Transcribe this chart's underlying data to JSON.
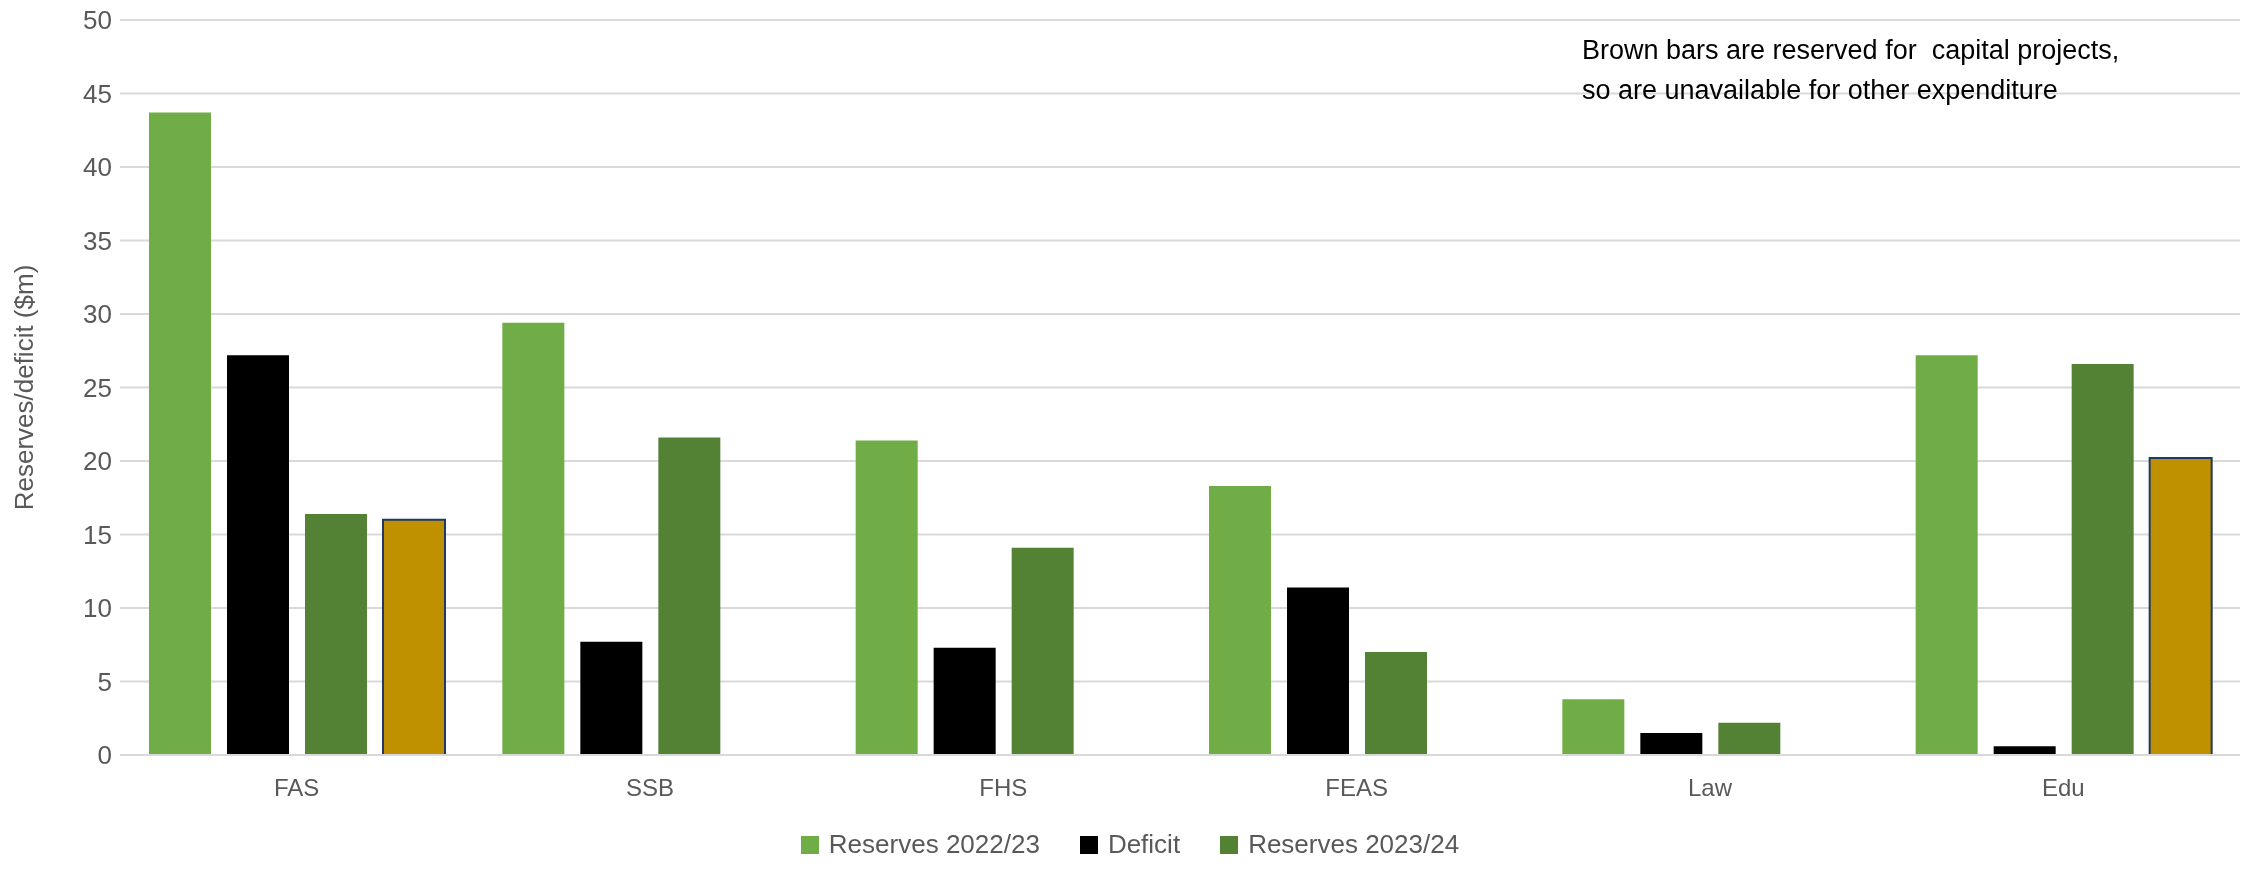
{
  "chart_data": {
    "type": "bar",
    "ylabel": "Reserves/deficit ($m)",
    "categories": [
      "FAS",
      "SSB",
      "FHS",
      "FEAS",
      "Law",
      "Edu"
    ],
    "series": [
      {
        "name": "Reserves 2022/23",
        "color": "#70ad47",
        "values": [
          43.7,
          29.4,
          21.4,
          18.3,
          3.8,
          27.2
        ]
      },
      {
        "name": "Deficit",
        "color": "#000000",
        "values": [
          27.2,
          7.7,
          7.3,
          11.4,
          1.5,
          0.6
        ]
      },
      {
        "name": "Reserves 2023/24",
        "color": "#548235",
        "values": [
          16.4,
          21.6,
          14.1,
          7.0,
          2.2,
          26.6
        ]
      },
      {
        "color": "#bf9000",
        "values": [
          16.0,
          null,
          null,
          null,
          null,
          20.2
        ]
      }
    ],
    "ylim": [
      0,
      50
    ],
    "yticks": [
      0,
      5,
      10,
      15,
      20,
      25,
      30,
      35,
      40,
      45,
      50
    ],
    "grid": "y",
    "legend": "bottom",
    "annotations": [
      "Brown bars are reserved for  capital projects, so are unavailable for other expenditure"
    ]
  }
}
